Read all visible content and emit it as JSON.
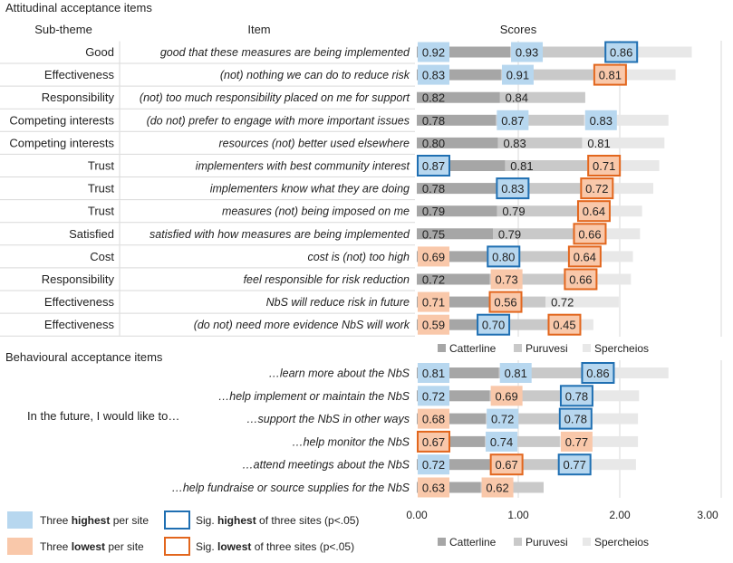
{
  "chart_data": {
    "type": "bar",
    "stacked": true,
    "axis_range": [
      0,
      3
    ],
    "ticks": [
      "0.00",
      "1.00",
      "2.00",
      "3.00"
    ],
    "series_names": [
      "Catterline",
      "Puruvesi",
      "Spercheios"
    ],
    "colors": {
      "catterline": "#a6a6a6",
      "puruvesi": "#c9c9c9",
      "spercheios": "#e8e8e8",
      "highest_fill": "#b7d7ef",
      "lowest_fill": "#f9c8aa",
      "sig_highest_border": "#1f6fb2",
      "sig_lowest_border": "#e2661d",
      "grid": "#d9d9d9"
    },
    "attitudinal": {
      "title": "Attitudinal acceptance items",
      "header_subtheme": "Sub-theme",
      "header_item": "Item",
      "header_scores": "Scores",
      "rows": [
        {
          "subtheme": "Good",
          "item": "good that these measures are being implemented",
          "values": [
            0.92,
            0.93,
            0.86
          ],
          "labels": [
            "0.92",
            "0.93",
            "0.86"
          ],
          "flags": [
            "H",
            "H",
            "sigH"
          ]
        },
        {
          "subtheme": "Effectiveness",
          "item": "(not) nothing we can do to reduce risk",
          "values": [
            0.83,
            0.91,
            0.81
          ],
          "labels": [
            "0.83",
            "0.91",
            "0.81"
          ],
          "flags": [
            "H",
            "H",
            "sigL"
          ]
        },
        {
          "subtheme": "Responsibility",
          "item": "(not) too much responsibility placed on me for support",
          "values": [
            0.82,
            0.84,
            0
          ],
          "labels": [
            "0.82",
            "0.84",
            ""
          ],
          "flags": [
            "",
            "",
            ""
          ]
        },
        {
          "subtheme": "Competing interests",
          "item": "(do not) prefer to engage with more important issues",
          "values": [
            0.78,
            0.87,
            0.83
          ],
          "labels": [
            "0.78",
            "0.87",
            "0.83"
          ],
          "flags": [
            "",
            "H",
            "H"
          ]
        },
        {
          "subtheme": "Competing interests",
          "item": "resources (not) better used elsewhere",
          "values": [
            0.8,
            0.83,
            0.81
          ],
          "labels": [
            "0.80",
            "0.83",
            "0.81"
          ],
          "flags": [
            "",
            "",
            ""
          ]
        },
        {
          "subtheme": "Trust",
          "item": "implementers with best community interest",
          "values": [
            0.87,
            0.81,
            0.71
          ],
          "labels": [
            "0.87",
            "0.81",
            "0.71"
          ],
          "flags": [
            "sigH",
            "",
            "sigL"
          ]
        },
        {
          "subtheme": "Trust",
          "item": "implementers know what they are doing",
          "values": [
            0.78,
            0.83,
            0.72
          ],
          "labels": [
            "0.78",
            "0.83",
            "0.72"
          ],
          "flags": [
            "",
            "sigH",
            "sigL"
          ]
        },
        {
          "subtheme": "Trust",
          "item": "measures (not) being imposed on me",
          "values": [
            0.79,
            0.79,
            0.64
          ],
          "labels": [
            "0.79",
            "0.79",
            "0.64"
          ],
          "flags": [
            "",
            "",
            "sigL"
          ]
        },
        {
          "subtheme": "Satisfied",
          "item": "satisfied with how measures are being implemented",
          "values": [
            0.75,
            0.79,
            0.66
          ],
          "labels": [
            "0.75",
            "0.79",
            "0.66"
          ],
          "flags": [
            "",
            "",
            "sigL"
          ]
        },
        {
          "subtheme": "Cost",
          "item": "cost is (not) too high",
          "values": [
            0.69,
            0.8,
            0.64
          ],
          "labels": [
            "0.69",
            "0.80",
            "0.64"
          ],
          "flags": [
            "L",
            "sigH",
            "sigL"
          ]
        },
        {
          "subtheme": "Responsibility",
          "item": "feel responsible for risk reduction",
          "values": [
            0.72,
            0.73,
            0.66
          ],
          "labels": [
            "0.72",
            "0.73",
            "0.66"
          ],
          "flags": [
            "",
            "L",
            "sigL"
          ]
        },
        {
          "subtheme": "Effectiveness",
          "item": "NbS will reduce risk in future",
          "values": [
            0.71,
            0.56,
            0.72
          ],
          "labels": [
            "0.71",
            "0.56",
            "0.72"
          ],
          "flags": [
            "L",
            "sigL",
            ""
          ]
        },
        {
          "subtheme": "Effectiveness",
          "item": "(do not) need more evidence NbS will work",
          "values": [
            0.59,
            0.7,
            0.45
          ],
          "labels": [
            "0.59",
            "0.70",
            "0.45"
          ],
          "flags": [
            "L",
            "sigH",
            "sigL"
          ]
        }
      ]
    },
    "behavioural": {
      "title": "Behavioural acceptance items",
      "group_label": "In the future, I would like to…",
      "rows": [
        {
          "item": "…learn more about the NbS",
          "values": [
            0.81,
            0.81,
            0.86
          ],
          "labels": [
            "0.81",
            "0.81",
            "0.86"
          ],
          "flags": [
            "H",
            "H",
            "sigH"
          ]
        },
        {
          "item": "…help implement or maintain the NbS",
          "values": [
            0.72,
            0.69,
            0.78
          ],
          "labels": [
            "0.72",
            "0.69",
            "0.78"
          ],
          "flags": [
            "H",
            "L",
            "sigH"
          ]
        },
        {
          "item": "…support the NbS in other ways",
          "values": [
            0.68,
            0.72,
            0.78
          ],
          "labels": [
            "0.68",
            "0.72",
            "0.78"
          ],
          "flags": [
            "L",
            "H",
            "sigH"
          ]
        },
        {
          "item": "…help monitor the NbS",
          "values": [
            0.67,
            0.74,
            0.77
          ],
          "labels": [
            "0.67",
            "0.74",
            "0.77"
          ],
          "flags": [
            "sigL",
            "H",
            "L"
          ]
        },
        {
          "item": "…attend meetings about the NbS",
          "values": [
            0.72,
            0.67,
            0.77
          ],
          "labels": [
            "0.72",
            "0.67",
            "0.77"
          ],
          "flags": [
            "H",
            "sigL",
            "sigH"
          ]
        },
        {
          "item": "…help fundraise or source supplies for the NbS",
          "values": [
            0.63,
            0.62,
            0
          ],
          "labels": [
            "0.63",
            "0.62",
            ""
          ],
          "flags": [
            "L",
            "L",
            ""
          ]
        }
      ]
    },
    "legend": {
      "three_highest": {
        "prefix": "Three ",
        "bold": "highest",
        "suffix": " per site"
      },
      "three_lowest": {
        "prefix": "Three ",
        "bold": "lowest",
        "suffix": " per site"
      },
      "sig_highest": {
        "prefix": "Sig. ",
        "bold": "highest",
        "suffix": " of three sites (p<.05)"
      },
      "sig_lowest": {
        "prefix": "Sig. ",
        "bold": "lowest",
        "suffix": " of three sites (p<.05)"
      }
    }
  }
}
